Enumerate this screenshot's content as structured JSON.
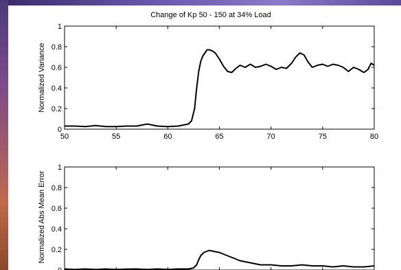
{
  "figure_title": "Change of Kp 50 - 150 at 34% Load",
  "chart_data": [
    {
      "type": "line",
      "title": "Change of Kp 50 - 150 at 34% Load",
      "xlabel": "",
      "ylabel": "Normalized Variance",
      "xlim": [
        50,
        80
      ],
      "ylim": [
        0,
        1
      ],
      "xticks": [
        "50",
        "55",
        "60",
        "65",
        "70",
        "75",
        "80"
      ],
      "yticks": [
        "0",
        "0.2",
        "0.4",
        "0.6",
        "0.8",
        "1"
      ],
      "grid": false,
      "series": [
        {
          "color": "#000000",
          "x": [
            50,
            51,
            52,
            53,
            54,
            55,
            56,
            57,
            57.5,
            58,
            58.5,
            59,
            60,
            61,
            61.5,
            62,
            62.3,
            62.6,
            62.8,
            63.0,
            63.2,
            63.4,
            63.6,
            63.8,
            64.0,
            64.3,
            64.6,
            65.0,
            65.4,
            65.8,
            66.2,
            66.6,
            67.0,
            67.5,
            68.0,
            68.5,
            69.0,
            69.5,
            70.0,
            70.5,
            71.0,
            71.5,
            72.0,
            72.4,
            72.8,
            73.2,
            73.6,
            74.0,
            74.5,
            75.0,
            75.5,
            76.0,
            76.5,
            77.0,
            77.5,
            78.0,
            78.5,
            79.0,
            79.4,
            79.7,
            80.0
          ],
          "y": [
            0.03,
            0.03,
            0.025,
            0.035,
            0.025,
            0.025,
            0.03,
            0.03,
            0.04,
            0.05,
            0.04,
            0.03,
            0.025,
            0.03,
            0.04,
            0.05,
            0.08,
            0.2,
            0.4,
            0.56,
            0.66,
            0.71,
            0.74,
            0.77,
            0.77,
            0.76,
            0.74,
            0.68,
            0.61,
            0.56,
            0.55,
            0.59,
            0.62,
            0.6,
            0.63,
            0.6,
            0.61,
            0.63,
            0.61,
            0.58,
            0.6,
            0.59,
            0.64,
            0.7,
            0.74,
            0.72,
            0.65,
            0.6,
            0.62,
            0.63,
            0.61,
            0.63,
            0.62,
            0.6,
            0.56,
            0.6,
            0.58,
            0.55,
            0.58,
            0.64,
            0.62
          ]
        }
      ]
    },
    {
      "type": "line",
      "title": "",
      "xlabel": "",
      "ylabel": "Normalized Abs Mean Error",
      "xlim": [
        50,
        80
      ],
      "ylim": [
        0,
        1
      ],
      "yticks": [
        "0",
        "0.2",
        "0.4",
        "0.6",
        "0.8",
        "1"
      ],
      "grid": false,
      "series": [
        {
          "color": "#000000",
          "x": [
            50,
            51,
            52,
            53,
            54,
            55,
            56,
            57,
            58,
            59,
            60,
            61,
            62,
            62.5,
            62.8,
            63.0,
            63.2,
            63.5,
            64.0,
            64.5,
            65.0,
            65.5,
            66.0,
            66.5,
            67.0,
            67.5,
            68.0,
            68.5,
            69.0,
            70.0,
            71.0,
            72.0,
            73.0,
            74.0,
            75.0,
            76.0,
            77.0,
            78.0,
            79.0,
            80.0
          ],
          "y": [
            0.01,
            0.005,
            0.01,
            0.005,
            0.01,
            0.005,
            0.008,
            0.01,
            0.005,
            0.01,
            0.005,
            0.01,
            0.01,
            0.02,
            0.05,
            0.1,
            0.14,
            0.17,
            0.19,
            0.18,
            0.17,
            0.15,
            0.13,
            0.11,
            0.09,
            0.08,
            0.07,
            0.06,
            0.05,
            0.05,
            0.04,
            0.04,
            0.05,
            0.04,
            0.04,
            0.03,
            0.04,
            0.03,
            0.03,
            0.04
          ]
        }
      ]
    }
  ]
}
